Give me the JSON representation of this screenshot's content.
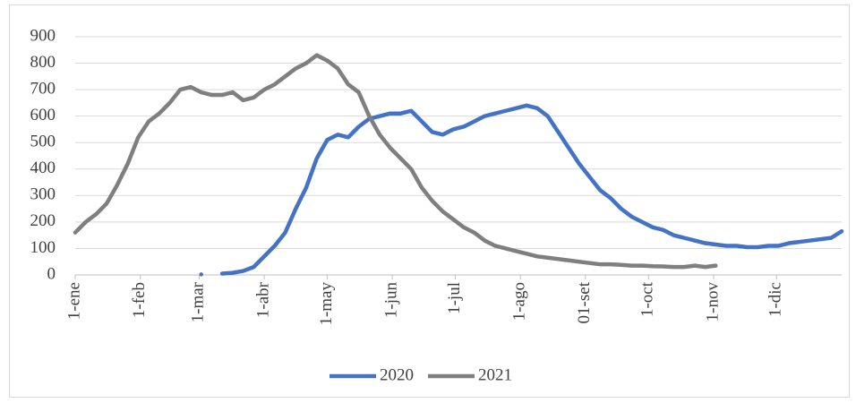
{
  "chart_data": {
    "type": "line",
    "x": [
      0,
      5,
      10,
      15,
      20,
      25,
      30,
      35,
      40,
      45,
      50,
      55,
      60,
      65,
      70,
      75,
      80,
      85,
      90,
      95,
      100,
      105,
      110,
      115,
      120,
      125,
      130,
      135,
      140,
      145,
      150,
      155,
      160,
      165,
      170,
      175,
      180,
      185,
      190,
      195,
      200,
      205,
      210,
      215,
      220,
      225,
      230,
      235,
      240,
      245,
      250,
      255,
      260,
      265,
      270,
      275,
      280,
      285,
      290,
      295,
      300,
      305,
      310,
      315,
      320,
      325,
      330,
      335,
      340,
      345,
      350,
      355,
      360,
      365
    ],
    "xlim": [
      0,
      365
    ],
    "xticks": [
      {
        "value": 0,
        "label": "1-ene"
      },
      {
        "value": 31,
        "label": "1-feb"
      },
      {
        "value": 59,
        "label": "1-mar"
      },
      {
        "value": 90,
        "label": "1-abr"
      },
      {
        "value": 120,
        "label": "1-may"
      },
      {
        "value": 151,
        "label": "1-jun"
      },
      {
        "value": 181,
        "label": "1-jul"
      },
      {
        "value": 212,
        "label": "1-ago"
      },
      {
        "value": 243,
        "label": "01-set"
      },
      {
        "value": 273,
        "label": "1-oct"
      },
      {
        "value": 304,
        "label": "1-nov"
      },
      {
        "value": 334,
        "label": "1-dic"
      }
    ],
    "ylim": [
      0,
      900
    ],
    "yticks": [
      0,
      100,
      200,
      300,
      400,
      500,
      600,
      700,
      800,
      900
    ],
    "grid": true,
    "legend": "bottom",
    "series": [
      {
        "name": "2020",
        "color": "#4472c4",
        "values": [
          null,
          null,
          null,
          null,
          null,
          null,
          null,
          null,
          null,
          null,
          null,
          null,
          2,
          null,
          5,
          8,
          15,
          30,
          70,
          110,
          160,
          250,
          330,
          440,
          510,
          530,
          520,
          560,
          590,
          600,
          610,
          610,
          620,
          580,
          540,
          530,
          550,
          560,
          580,
          600,
          610,
          620,
          630,
          640,
          630,
          600,
          540,
          480,
          420,
          370,
          320,
          290,
          250,
          220,
          200,
          180,
          170,
          150,
          140,
          130,
          120,
          115,
          110,
          110,
          105,
          105,
          110,
          110,
          120,
          125,
          130,
          135,
          140,
          165
        ]
      },
      {
        "name": "2021",
        "color": "#7f7f7f",
        "values": [
          160,
          200,
          230,
          270,
          340,
          420,
          520,
          580,
          610,
          650,
          700,
          710,
          690,
          680,
          680,
          690,
          660,
          670,
          700,
          720,
          750,
          780,
          800,
          830,
          810,
          780,
          720,
          690,
          600,
          530,
          480,
          440,
          400,
          330,
          280,
          240,
          210,
          180,
          160,
          130,
          110,
          100,
          90,
          80,
          70,
          65,
          60,
          55,
          50,
          45,
          40,
          40,
          38,
          35,
          35,
          33,
          32,
          30,
          30,
          35,
          30,
          35,
          null,
          null,
          null,
          null,
          null,
          null,
          null,
          null,
          null,
          null,
          null,
          null
        ]
      }
    ]
  }
}
